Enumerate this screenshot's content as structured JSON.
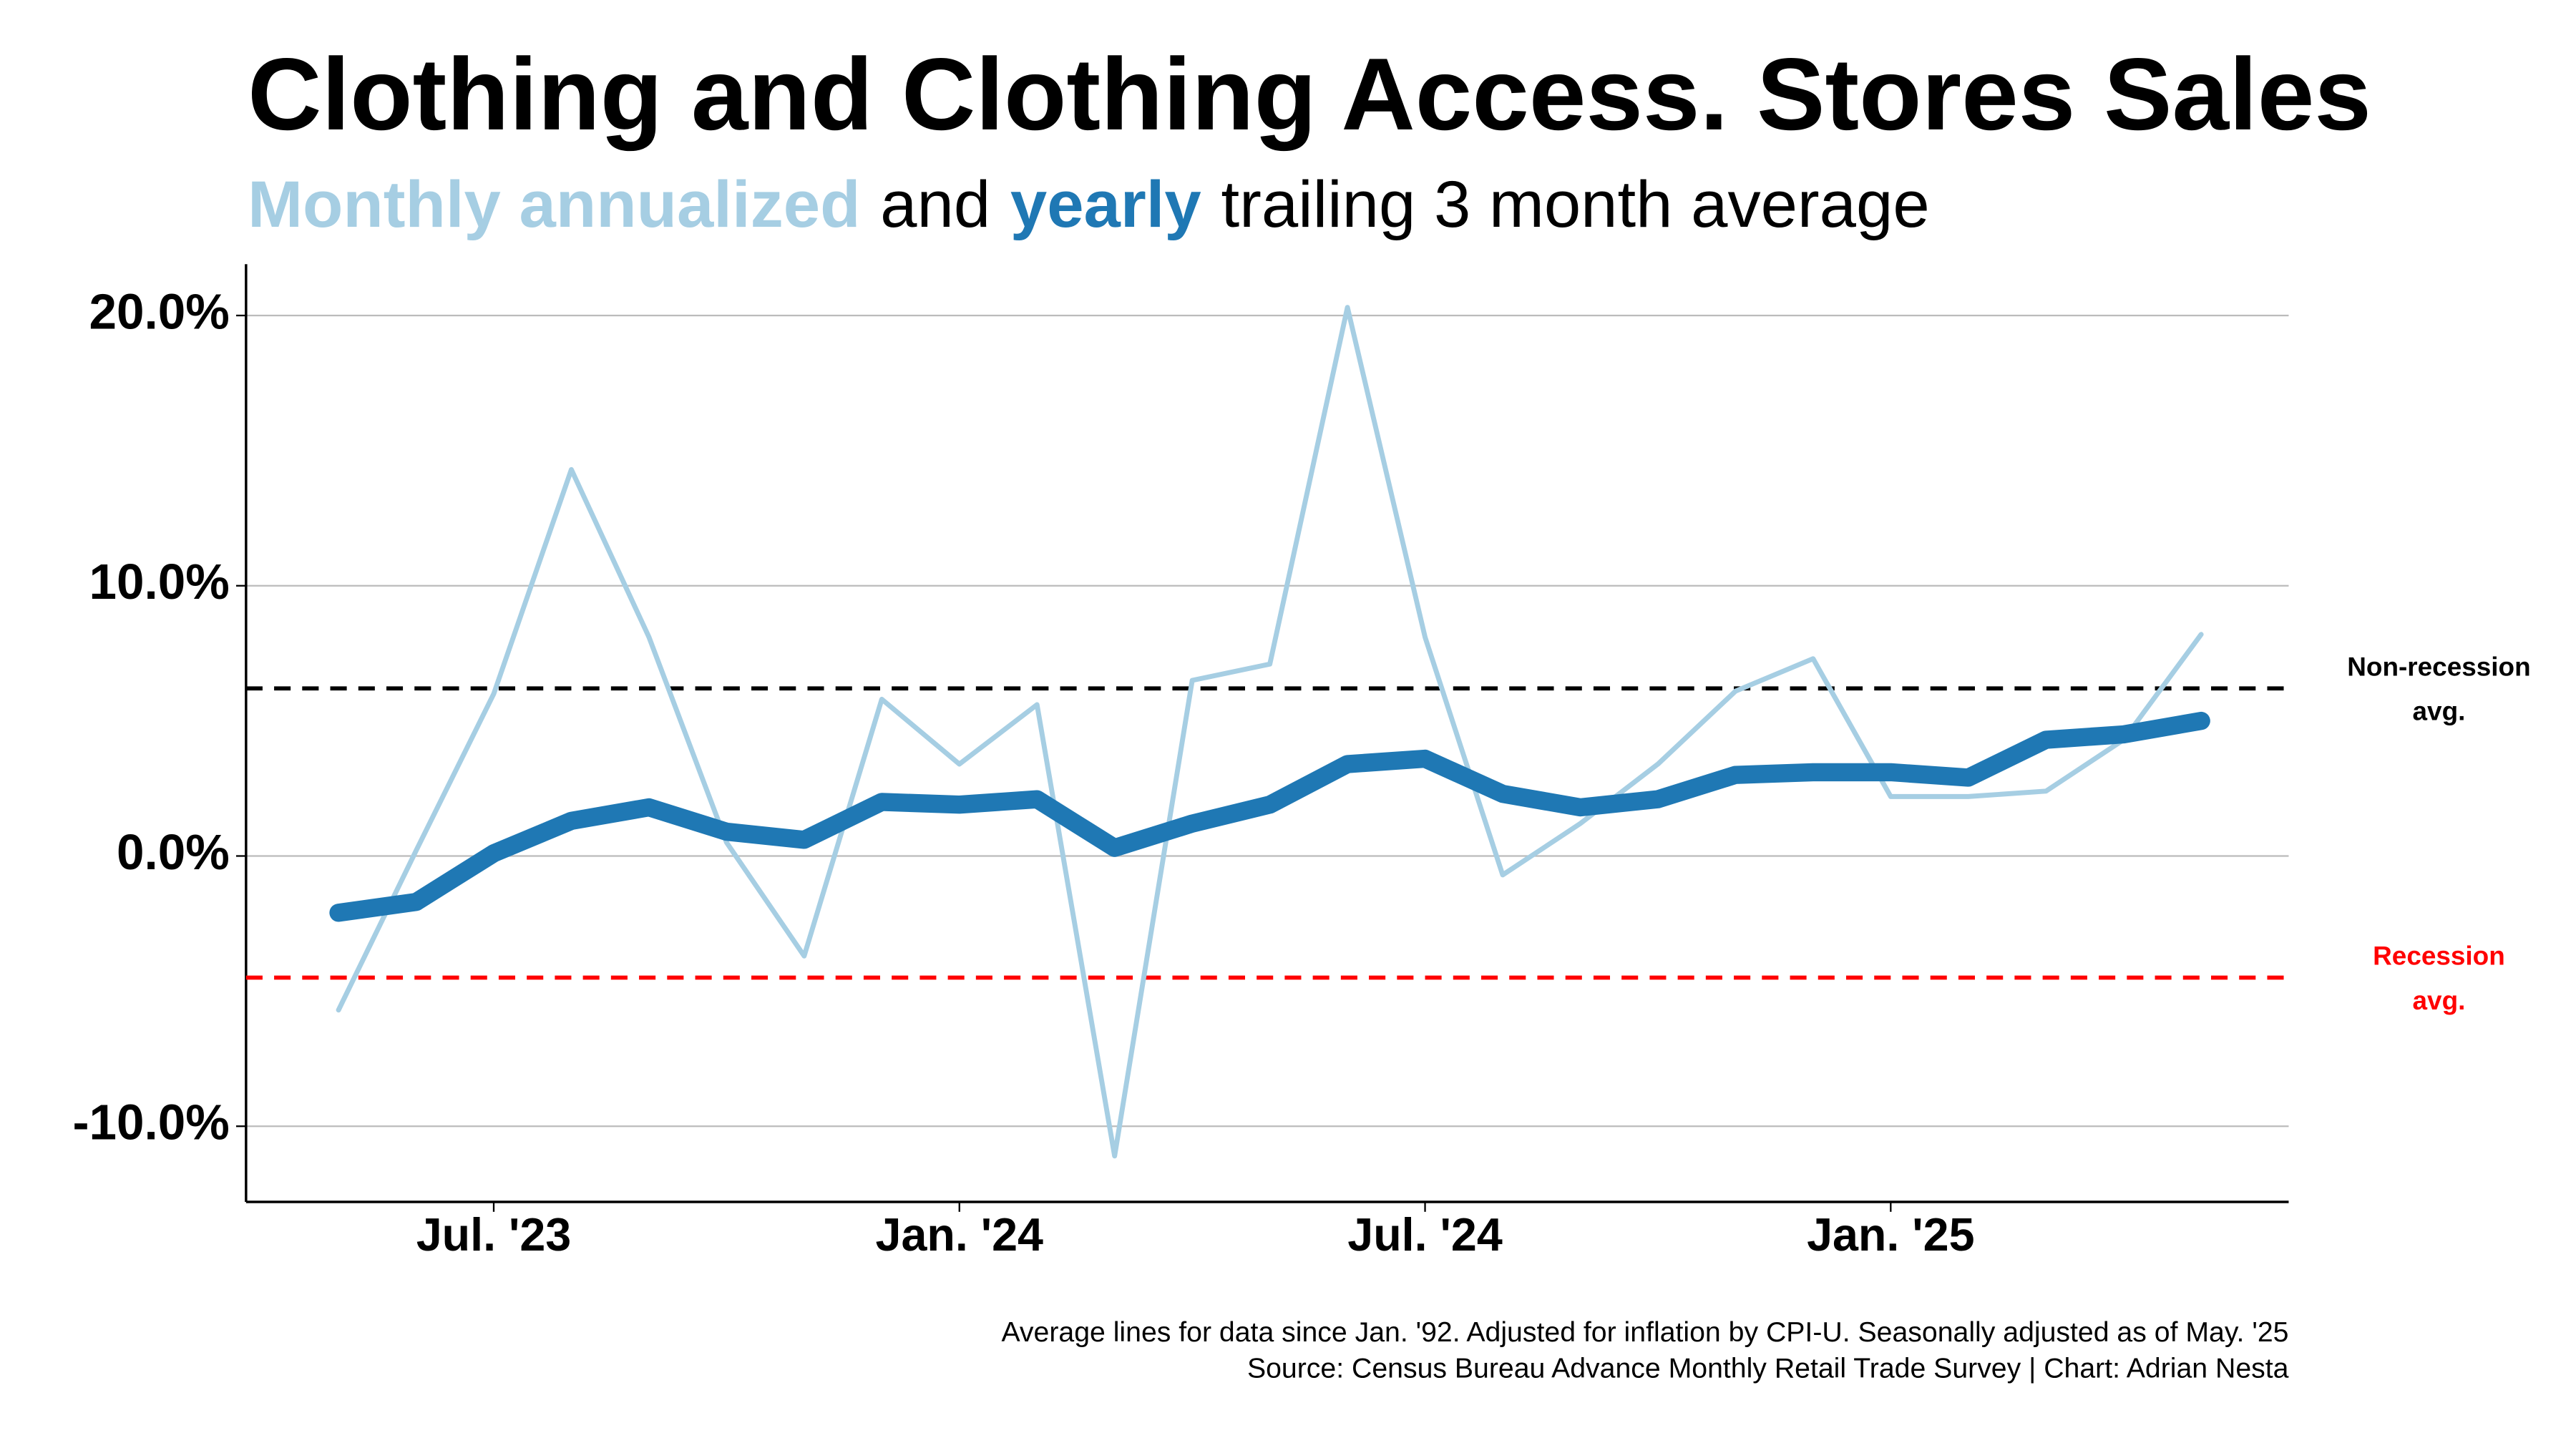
{
  "chart_data": {
    "type": "line",
    "title": "Clothing and Clothing Access. Stores Sales",
    "subtitle": [
      "Monthly annualized",
      "and",
      "yearly",
      "trailing 3 month average"
    ],
    "categories": [
      null,
      null,
      "Jul. '23",
      null,
      null,
      null,
      null,
      null,
      "Jan. '24",
      null,
      null,
      null,
      null,
      null,
      "Jul. '24",
      null,
      null,
      null,
      null,
      null,
      "Jan. '25",
      null,
      null,
      null,
      null
    ],
    "series": [
      {
        "name": "Monthly annualized",
        "color": "#a6cee3",
        "width": 3,
        "values": [
          -5.7,
          0.2,
          6.0,
          14.3,
          8.1,
          0.5,
          -3.7,
          5.8,
          3.4,
          5.6,
          -11.1,
          6.5,
          7.1,
          20.3,
          8.1,
          -0.7,
          1.2,
          3.4,
          6.1,
          7.3,
          2.2,
          2.2,
          2.4,
          4.3,
          8.2
        ]
      },
      {
        "name": "yearly",
        "color": "#1f78b4",
        "width": 11,
        "values": [
          -2.1,
          -1.7,
          0.1,
          1.3,
          1.8,
          0.9,
          0.6,
          2.0,
          1.9,
          2.1,
          0.3,
          1.2,
          1.9,
          3.4,
          3.6,
          2.3,
          1.8,
          2.1,
          3.0,
          3.1,
          3.1,
          2.9,
          4.3,
          4.5,
          5.0
        ]
      }
    ],
    "reference_lines": [
      {
        "label": [
          "Non-recession",
          "avg."
        ],
        "value": 6.2,
        "color": "#000000"
      },
      {
        "label": [
          "Recession",
          "avg."
        ],
        "value": -4.5,
        "color": "#ff0000"
      }
    ],
    "ylim": [
      -12.8,
      21.9
    ],
    "yticks": [
      {
        "value": -10,
        "label": "-10.0%"
      },
      {
        "value": 0,
        "label": "0.0%"
      },
      {
        "value": 10,
        "label": "10.0%"
      },
      {
        "value": 20,
        "label": "20.0%"
      }
    ],
    "grid": true,
    "notes": [
      "Average lines for data since Jan. '92. Adjusted for inflation by CPI-U. Seasonally adjusted as of May. '25",
      "Source: Census Bureau Advance Monthly Retail Trade Survey | Chart: Adrian Nesta"
    ]
  }
}
